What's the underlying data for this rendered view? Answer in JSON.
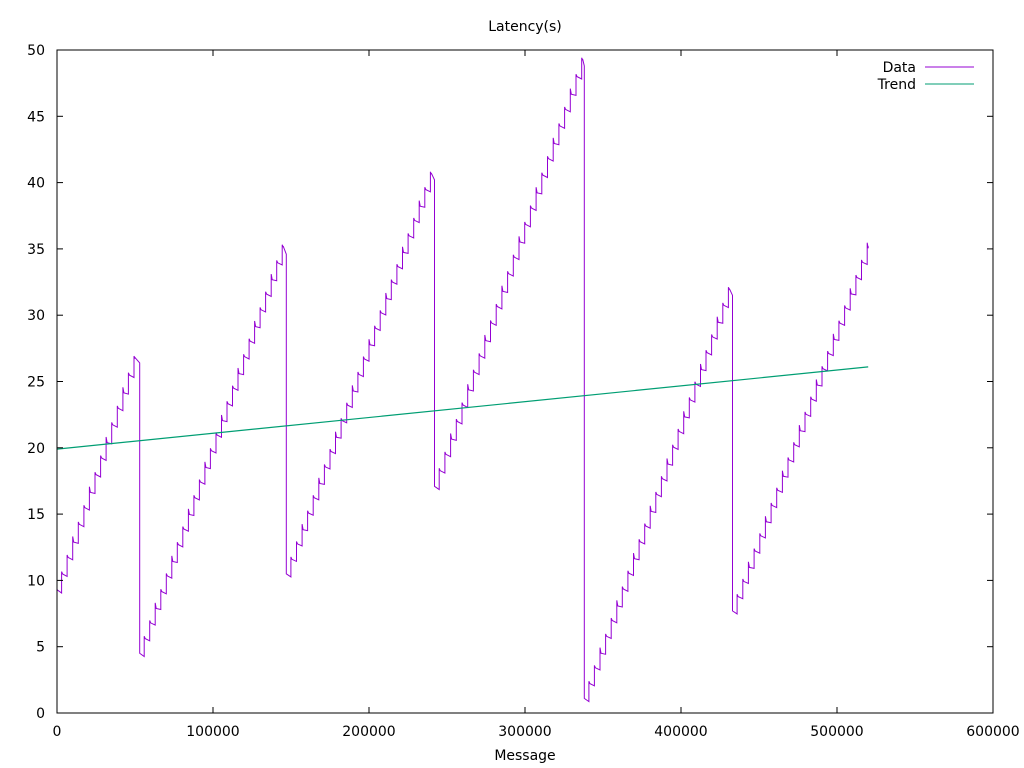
{
  "chart_data": {
    "type": "line",
    "title": "Latency(s)",
    "xlabel": "Message",
    "ylabel": "",
    "xlim": [
      0,
      600000
    ],
    "ylim": [
      0,
      50
    ],
    "xticks": [
      0,
      100000,
      200000,
      300000,
      400000,
      500000,
      600000
    ],
    "yticks": [
      0,
      5,
      10,
      15,
      20,
      25,
      30,
      35,
      40,
      45,
      50
    ],
    "grid": false,
    "legend_position": "top-right",
    "colors": {
      "data": "#9400d3",
      "trend": "#009e73",
      "axis": "#000000"
    },
    "series": [
      {
        "name": "Data",
        "style": "sawtooth",
        "points": [
          [
            0,
            9.3
          ],
          [
            50000,
            26.8
          ],
          [
            53000,
            26.4
          ],
          [
            53000,
            4.5
          ],
          [
            145000,
            35.2
          ],
          [
            147000,
            34.6
          ],
          [
            147000,
            10.5
          ],
          [
            240000,
            40.7
          ],
          [
            242000,
            40.2
          ],
          [
            242000,
            17.1
          ],
          [
            337000,
            49.3
          ],
          [
            338000,
            48.8
          ],
          [
            338000,
            1.1
          ],
          [
            431000,
            32.0
          ],
          [
            433000,
            31.5
          ],
          [
            433000,
            7.7
          ],
          [
            520000,
            35.2
          ]
        ]
      },
      {
        "name": "Trend",
        "style": "line",
        "points": [
          [
            0,
            19.9
          ],
          [
            520000,
            26.1
          ]
        ]
      }
    ]
  }
}
